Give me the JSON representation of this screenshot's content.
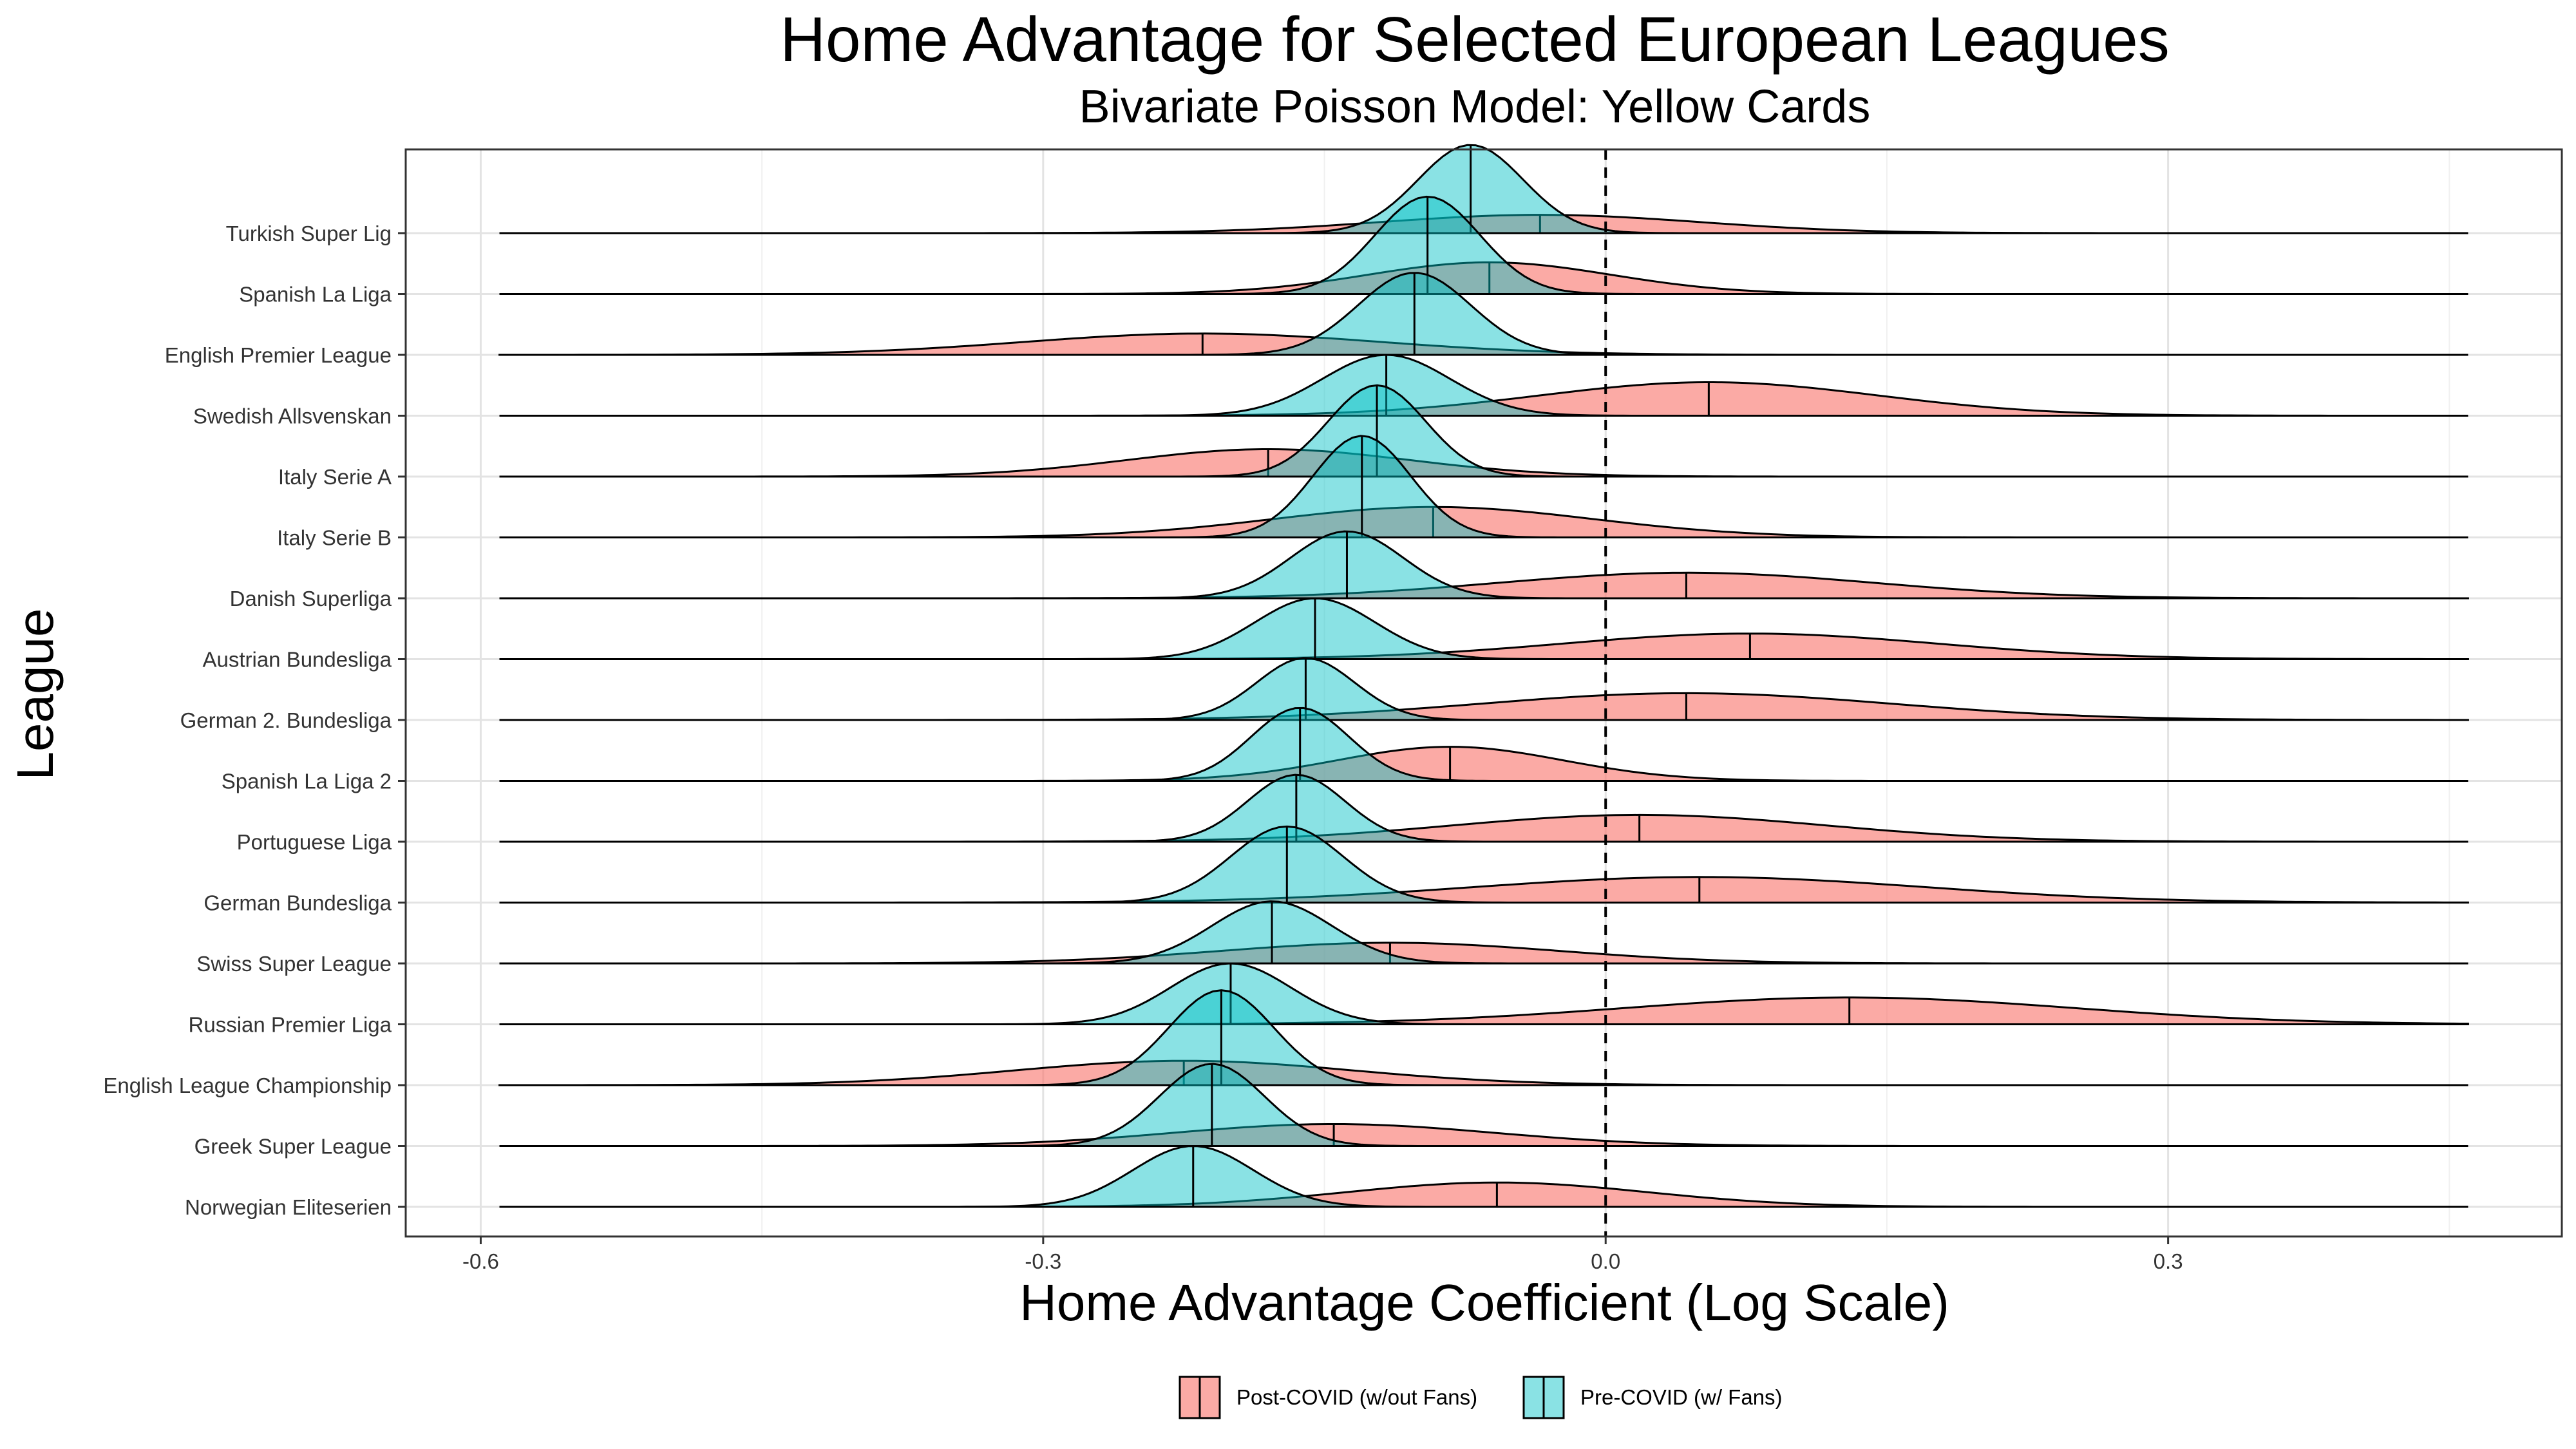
{
  "chart_data": {
    "type": "ridgeline",
    "title": "Home Advantage for Selected European Leagues",
    "subtitle": "Bivariate Poisson Model: Yellow Cards",
    "xlabel": "Home Advantage Coefficient (Log Scale)",
    "ylabel": "League",
    "xlim": [
      -0.64,
      0.51
    ],
    "x_ticks": [
      -0.6,
      -0.3,
      0.0,
      0.3
    ],
    "x_tick_labels": [
      "-0.6",
      "-0.3",
      "0.0",
      "0.3"
    ],
    "grid": true,
    "reference_line": {
      "x": 0.0,
      "style": "dashed"
    },
    "legend": {
      "position": "bottom",
      "entries": [
        {
          "name": "Post-COVID (w/out Fans)",
          "color": "#f8766d"
        },
        {
          "name": "Pre-COVID (w/ Fans)",
          "color": "#00bfc4"
        }
      ]
    },
    "density_range": [
      -0.59,
      0.46
    ],
    "categories": [
      "Turkish Super Lig",
      "Spanish La Liga",
      "English Premier League",
      "Swedish Allsvenskan",
      "Italy Serie A",
      "Italy Serie B",
      "Danish Superliga",
      "Austrian Bundesliga",
      "German 2. Bundesliga",
      "Spanish La Liga 2",
      "Portuguese Liga",
      "German Bundesliga",
      "Swiss Super League",
      "Russian Premier Liga",
      "English League Championship",
      "Greek Super League",
      "Norwegian Eliteserien"
    ],
    "series": [
      {
        "name": "Post-COVID (w/out Fans)",
        "color": "#f8766d",
        "medians": [
          -0.035,
          -0.062,
          -0.215,
          0.055,
          -0.18,
          -0.092,
          0.043,
          0.077,
          0.043,
          -0.083,
          0.018,
          0.05,
          -0.115,
          0.13,
          -0.225,
          -0.145,
          -0.058
        ],
        "spreads": [
          0.085,
          0.065,
          0.095,
          0.09,
          0.075,
          0.085,
          0.1,
          0.1,
          0.11,
          0.06,
          0.1,
          0.12,
          0.09,
          0.12,
          0.09,
          0.085,
          0.08
        ],
        "heights": [
          0.3,
          0.52,
          0.35,
          0.55,
          0.45,
          0.5,
          0.42,
          0.42,
          0.44,
          0.56,
          0.44,
          0.42,
          0.34,
          0.44,
          0.4,
          0.36,
          0.4
        ]
      },
      {
        "name": "Pre-COVID (w/ Fans)",
        "color": "#00bfc4",
        "medians": [
          -0.072,
          -0.095,
          -0.102,
          -0.117,
          -0.122,
          -0.13,
          -0.138,
          -0.155,
          -0.16,
          -0.163,
          -0.165,
          -0.17,
          -0.178,
          -0.2,
          -0.205,
          -0.21,
          -0.22
        ],
        "spreads": [
          0.028,
          0.028,
          0.03,
          0.034,
          0.026,
          0.026,
          0.03,
          0.032,
          0.026,
          0.026,
          0.026,
          0.03,
          0.032,
          0.032,
          0.028,
          0.028,
          0.032
        ],
        "heights": [
          1.45,
          1.6,
          1.35,
          1.0,
          1.5,
          1.67,
          1.1,
          1.0,
          1.02,
          1.2,
          1.1,
          1.25,
          1.02,
          1.0,
          1.56,
          1.35,
          1.0
        ]
      }
    ]
  }
}
